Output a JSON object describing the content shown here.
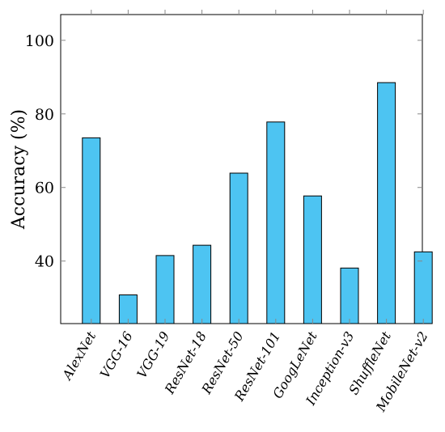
{
  "chart_data": {
    "type": "bar",
    "title": "",
    "xlabel": "",
    "ylabel": "Accuracy (%)",
    "ylim": [
      23,
      107
    ],
    "yticks": [
      40,
      60,
      80,
      100
    ],
    "grid": false,
    "bar_color": "#4dc4f2",
    "bar_edge_color": "#000000",
    "categories": [
      "AlexNet",
      "VGG-16",
      "VGG-19",
      "ResNet-18",
      "ResNet-50",
      "ResNet-101",
      "GoogLeNet",
      "Inception-v3",
      "ShuffleNet",
      "MobileNet-v2"
    ],
    "series": [
      {
        "values": [
          73.5,
          30.8,
          41.5,
          44.3,
          63.9,
          77.8,
          57.7,
          38.1,
          88.5,
          42.5
        ]
      }
    ]
  }
}
